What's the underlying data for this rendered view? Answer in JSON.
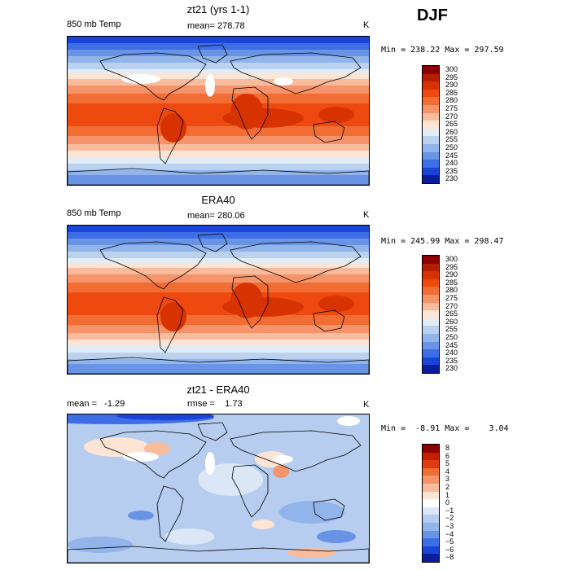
{
  "season": "DJF",
  "panels": [
    {
      "title": "zt21 (yrs 1-1)",
      "left_label": "850 mb Temp",
      "center_label": "mean= 278.78",
      "units": "K",
      "min_label": "Min = 238.22",
      "max_label": "Max = 297.59",
      "min": 238.22,
      "max": 297.59,
      "colorbar_levels": [
        "300",
        "295",
        "290",
        "285",
        "280",
        "275",
        "270",
        "265",
        "260",
        "255",
        "250",
        "245",
        "240",
        "235",
        "230"
      ],
      "colorbar_colors": [
        "#8b0000",
        "#b41e00",
        "#d73300",
        "#ee4a10",
        "#f26d34",
        "#f5946b",
        "#f8bc9c",
        "#fde4d4",
        "#e1ecf7",
        "#bad2f0",
        "#91b4ea",
        "#6994e6",
        "#3e6ee6",
        "#1a44d8",
        "#0a1e9c"
      ],
      "palette": "warm"
    },
    {
      "title": "ERA40",
      "left_label": "850 mb Temp",
      "center_label": "mean= 280.06",
      "units": "K",
      "min_label": "Min = 245.99",
      "max_label": "Max = 298.47",
      "min": 245.99,
      "max": 298.47,
      "colorbar_levels": [
        "300",
        "295",
        "290",
        "285",
        "280",
        "275",
        "270",
        "265",
        "260",
        "255",
        "250",
        "245",
        "240",
        "235",
        "230"
      ],
      "colorbar_colors": [
        "#8b0000",
        "#b41e00",
        "#d73300",
        "#ee4a10",
        "#f26d34",
        "#f5946b",
        "#f8bc9c",
        "#fde4d4",
        "#e1ecf7",
        "#bad2f0",
        "#91b4ea",
        "#6994e6",
        "#3e6ee6",
        "#1a44d8",
        "#0a1e9c"
      ],
      "palette": "warm"
    },
    {
      "title": "zt21 - ERA40",
      "left_label": "mean =   -1.29",
      "center_label": "rmse =    1.73",
      "units": "K",
      "min_label": "Min =  -8.91",
      "max_label": "Max =    3.04",
      "min": -8.91,
      "max": 3.04,
      "colorbar_levels": [
        "8",
        "6",
        "5",
        "4",
        "3",
        "2",
        "1",
        "0",
        "−1",
        "−2",
        "−3",
        "−4",
        "−5",
        "−6",
        "−8"
      ],
      "colorbar_colors": [
        "#8b0000",
        "#c81e00",
        "#e03a10",
        "#f26d34",
        "#f5946b",
        "#f8bc9c",
        "#fde4d4",
        "#ffffff",
        "#dbe7f6",
        "#b6cdef",
        "#91b4ea",
        "#6994e6",
        "#3e6ee6",
        "#1a44d8",
        "#0a1e9c"
      ],
      "palette": "diff"
    }
  ]
}
